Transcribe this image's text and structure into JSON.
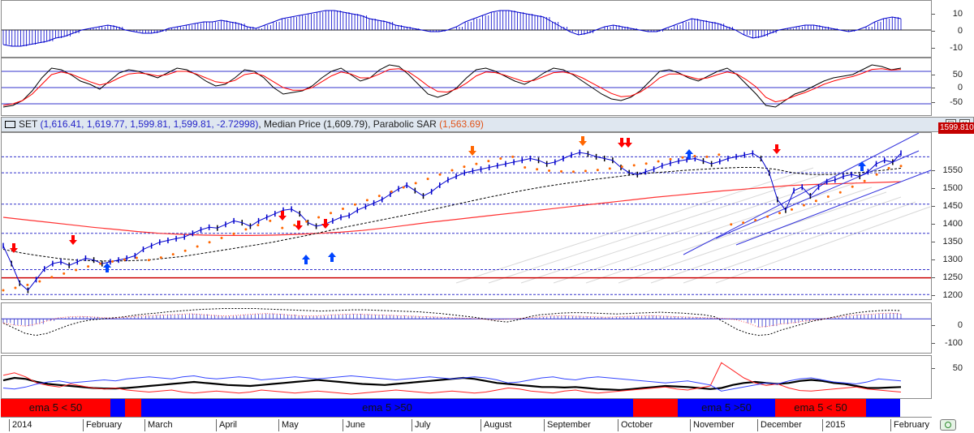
{
  "header": {
    "symbol": "SET",
    "ohlc_text": "(1,616.41, 1,619.77, 1,599.81, 1,599.81, -2.72998)",
    "median_label": "Median Price",
    "median_value": "(1,609.79)",
    "sar_label": "Parabolic SAR",
    "sar_value": "(1,563.69)",
    "maximize_glyph": "□",
    "close_glyph": "×"
  },
  "last_price_tag": "1599.810",
  "months": [
    "2014",
    "February",
    "March",
    "April",
    "May",
    "June",
    "July",
    "August",
    "September",
    "October",
    "November",
    "December",
    "2015",
    "February"
  ],
  "trend_bar": [
    {
      "label": "ema 5 < 50",
      "color": "#ff0000"
    },
    {
      "label": "",
      "color": "#0000ff"
    },
    {
      "label": "",
      "color": "#ff0000"
    },
    {
      "label": "ema 5 >50",
      "color": "#0000ff"
    },
    {
      "label": "",
      "color": "#ff0000"
    },
    {
      "label": "ema 5 >50",
      "color": "#0000ff"
    },
    {
      "label": "ema 5 < 50",
      "color": "#ff0000"
    },
    {
      "label": "",
      "color": "#0000ff"
    }
  ],
  "colors": {
    "price_bars": "#0000cc",
    "price_down": "#000000",
    "sma_long": "#ff3333",
    "ema_dashed": "#000000",
    "sar_dots": "#ff6600",
    "channel": "#3333dd",
    "signal_up": "#0044ff",
    "signal_down": "#ff0000",
    "hline_blue": "#3333cc",
    "hline_red": "#cc0000",
    "panel_bg": "#ffffff",
    "header_bg": "#dfe7f0"
  },
  "chart_data": [
    {
      "type": "bar",
      "name": "momentum histogram",
      "yticks": [
        "10",
        "0",
        "-10"
      ],
      "ylim": [
        -15,
        15
      ],
      "values": [
        -9,
        -10,
        -10,
        -9,
        -8,
        -7,
        -5,
        -4,
        -2,
        0,
        1,
        2,
        3,
        2,
        0,
        -1,
        -2,
        -2,
        -1,
        1,
        2,
        3,
        4,
        5,
        5,
        6,
        5,
        4,
        2,
        1,
        3,
        5,
        7,
        8,
        9,
        10,
        11,
        12,
        12,
        11,
        10,
        9,
        7,
        6,
        5,
        3,
        2,
        1,
        0,
        -1,
        -1,
        0,
        2,
        5,
        7,
        9,
        11,
        12,
        12,
        11,
        10,
        9,
        8,
        5,
        2,
        -1,
        -3,
        -2,
        0,
        2,
        3,
        2,
        1,
        0,
        -1,
        -1,
        1,
        3,
        5,
        7,
        6,
        5,
        4,
        2,
        0,
        -3,
        -5,
        -4,
        -2,
        0,
        1,
        2,
        3,
        3,
        2,
        1,
        0,
        -1,
        0,
        2,
        5,
        7,
        8,
        7
      ]
    },
    {
      "type": "line",
      "name": "oscillator",
      "yticks": [
        "50",
        "0",
        "-50"
      ],
      "ylim": [
        -80,
        80
      ],
      "hlines": [
        50,
        0,
        -50
      ],
      "series": [
        {
          "color": "#000000",
          "values": [
            -60,
            -55,
            -40,
            -10,
            30,
            60,
            55,
            40,
            20,
            10,
            -5,
            20,
            45,
            55,
            50,
            40,
            30,
            45,
            60,
            55,
            40,
            20,
            5,
            10,
            30,
            55,
            50,
            30,
            0,
            -20,
            -15,
            -10,
            5,
            30,
            50,
            60,
            40,
            20,
            30,
            55,
            70,
            65,
            40,
            10,
            -20,
            -30,
            -20,
            0,
            30,
            55,
            60,
            50,
            35,
            20,
            10,
            25,
            45,
            60,
            55,
            40,
            20,
            0,
            -20,
            -35,
            -40,
            -30,
            -10,
            20,
            50,
            55,
            45,
            30,
            20,
            35,
            50,
            60,
            40,
            10,
            -20,
            -55,
            -60,
            -40,
            -20,
            -10,
            5,
            20,
            30,
            35,
            40,
            55,
            70,
            65,
            55,
            60
          ]
        },
        {
          "color": "#ff0000",
          "values": [
            -55,
            -50,
            -40,
            -20,
            10,
            40,
            48,
            42,
            30,
            18,
            8,
            15,
            30,
            42,
            45,
            42,
            36,
            40,
            50,
            50,
            42,
            30,
            18,
            14,
            22,
            40,
            45,
            36,
            18,
            0,
            -8,
            -8,
            0,
            18,
            36,
            48,
            42,
            30,
            30,
            42,
            56,
            58,
            48,
            28,
            5,
            -12,
            -14,
            -4,
            14,
            36,
            48,
            46,
            38,
            28,
            18,
            22,
            34,
            46,
            48,
            42,
            30,
            14,
            -2,
            -18,
            -28,
            -26,
            -14,
            6,
            30,
            42,
            42,
            34,
            26,
            30,
            40,
            48,
            42,
            24,
            2,
            -30,
            -44,
            -38,
            -26,
            -16,
            -4,
            10,
            20,
            28,
            34,
            44,
            56,
            58,
            54,
            56
          ]
        }
      ]
    },
    {
      "type": "line",
      "name": "SET price",
      "yticks": [
        "1550",
        "1500",
        "1450",
        "1400",
        "1350",
        "1300",
        "1250",
        "1200"
      ],
      "ylim": [
        1190,
        1650
      ],
      "hlines_blue": [
        1590,
        1545,
        1457,
        1375,
        1273,
        1203
      ],
      "hline_red": 1250,
      "close": [
        1340,
        1290,
        1235,
        1215,
        1245,
        1275,
        1290,
        1295,
        1285,
        1295,
        1305,
        1300,
        1290,
        1295,
        1300,
        1305,
        1312,
        1330,
        1340,
        1350,
        1355,
        1360,
        1365,
        1375,
        1385,
        1392,
        1390,
        1400,
        1410,
        1405,
        1395,
        1410,
        1420,
        1430,
        1440,
        1443,
        1430,
        1405,
        1395,
        1400,
        1410,
        1420,
        1425,
        1440,
        1450,
        1460,
        1470,
        1485,
        1500,
        1510,
        1495,
        1480,
        1492,
        1510,
        1525,
        1535,
        1545,
        1550,
        1555,
        1560,
        1565,
        1570,
        1575,
        1580,
        1585,
        1580,
        1570,
        1575,
        1585,
        1595,
        1602,
        1598,
        1590,
        1585,
        1580,
        1560,
        1545,
        1540,
        1548,
        1555,
        1565,
        1572,
        1578,
        1582,
        1585,
        1578,
        1570,
        1577,
        1585,
        1590,
        1595,
        1600,
        1585,
        1545,
        1470,
        1440,
        1495,
        1505,
        1480,
        1505,
        1520,
        1525,
        1535,
        1540,
        1535,
        1548,
        1570,
        1580,
        1575,
        1600
      ],
      "sma_long": [
        1420,
        1413,
        1406,
        1399,
        1392,
        1386,
        1380,
        1375,
        1372,
        1370,
        1369,
        1369,
        1370,
        1372,
        1375,
        1378,
        1383,
        1390,
        1398,
        1406,
        1413,
        1420,
        1427,
        1434,
        1441,
        1448,
        1455,
        1462,
        1469,
        1476,
        1482,
        1488,
        1494,
        1499,
        1504,
        1509,
        1512,
        1514,
        1516,
        1518,
        1520
      ],
      "ema_dashed": [
        1330,
        1320,
        1312,
        1305,
        1300,
        1298,
        1297,
        1298,
        1300,
        1305,
        1310,
        1318,
        1326,
        1334,
        1342,
        1350,
        1360,
        1370,
        1381,
        1392,
        1402,
        1412,
        1422,
        1432,
        1443,
        1454,
        1465,
        1476,
        1486,
        1496,
        1505,
        1513,
        1520,
        1527,
        1533,
        1539,
        1544,
        1548,
        1552,
        1555,
        1558,
        1560,
        1560,
        1555,
        1545,
        1540,
        1540,
        1543,
        1547,
        1552,
        1558
      ],
      "sar": [
        1215,
        1222,
        1230,
        1240,
        1252,
        1262,
        1272,
        1282,
        1290,
        1296,
        1301,
        1306,
        1300,
        1307,
        1316,
        1326,
        1338,
        1350,
        1362,
        1374,
        1386,
        1398,
        1410,
        1390,
        1398,
        1408,
        1420,
        1432,
        1444,
        1456,
        1468,
        1480,
        1492,
        1504,
        1516,
        1528,
        1540,
        1552,
        1562,
        1570,
        1578,
        1585,
        1590,
        1560,
        1555,
        1551,
        1549,
        1548,
        1550,
        1553,
        1557,
        1562,
        1566,
        1571,
        1577,
        1583,
        1588,
        1592,
        1590,
        1596,
        1400,
        1405,
        1412,
        1422,
        1432,
        1442,
        1454,
        1466,
        1478,
        1490,
        1506,
        1522,
        1540,
        1558,
        1564
      ]
    },
    {
      "type": "bar",
      "name": "MACD histogram",
      "yticks": [
        "0",
        "-100"
      ],
      "ylim": [
        -160,
        60
      ],
      "hist": [
        -20,
        -30,
        -35,
        -25,
        -10,
        5,
        10,
        12,
        10,
        6,
        4,
        8,
        12,
        15,
        18,
        20,
        22,
        25,
        22,
        18,
        14,
        16,
        20,
        24,
        26,
        24,
        20,
        16,
        14,
        16,
        20,
        22,
        24,
        22,
        20,
        18,
        16,
        14,
        12,
        10,
        8,
        6,
        4,
        2,
        -2,
        -4,
        -2,
        2,
        6,
        10,
        14,
        16,
        14,
        12,
        10,
        8,
        10,
        12,
        14,
        16,
        14,
        12,
        10,
        8,
        6,
        4,
        2,
        -5,
        -20,
        -40,
        -35,
        -25,
        -20,
        -12,
        -6,
        0,
        8,
        15,
        20,
        22,
        26,
        28,
        24
      ],
      "macd": [
        -20,
        -45,
        -70,
        -80,
        -70,
        -50,
        -30,
        -15,
        -5,
        0,
        5,
        10,
        18,
        24,
        28,
        34,
        38,
        42,
        46,
        48,
        50,
        50,
        50,
        50,
        48,
        46,
        44,
        42,
        40,
        38,
        40,
        42,
        44,
        44,
        42,
        40,
        38,
        36,
        34,
        30,
        26,
        20,
        14,
        8,
        0,
        -10,
        -15,
        -5,
        10,
        20,
        24,
        28,
        30,
        30,
        28,
        26,
        24,
        26,
        28,
        30,
        32,
        30,
        28,
        24,
        20,
        10,
        -20,
        -50,
        -70,
        -80,
        -75,
        -55,
        -40,
        -25,
        -10,
        0,
        10,
        22,
        30,
        36,
        40,
        42,
        40
      ]
    },
    {
      "type": "line",
      "name": "ADX / DMI",
      "yticks": [
        "50"
      ],
      "ylim": [
        0,
        80
      ],
      "series": [
        {
          "color": "#000000",
          "values": [
            35,
            40,
            38,
            32,
            28,
            26,
            24,
            22,
            20,
            19,
            19,
            20,
            22,
            24,
            26,
            28,
            30,
            32,
            30,
            28,
            26,
            25,
            24,
            26,
            28,
            30,
            32,
            34,
            36,
            34,
            32,
            30,
            28,
            27,
            26,
            28,
            30,
            32,
            34,
            36,
            38,
            40,
            38,
            34,
            30,
            28,
            26,
            24,
            22,
            22,
            21,
            22,
            20,
            18,
            17,
            16,
            18,
            20,
            22,
            24,
            23,
            22,
            20,
            18,
            20,
            26,
            30,
            32,
            30,
            28,
            30,
            34,
            36,
            34,
            30,
            28,
            24,
            20,
            20,
            21,
            22
          ]
        },
        {
          "color": "#ff2222",
          "values": [
            45,
            50,
            42,
            30,
            25,
            22,
            28,
            24,
            20,
            18,
            20,
            16,
            14,
            12,
            14,
            16,
            12,
            10,
            12,
            14,
            12,
            10,
            12,
            16,
            14,
            12,
            10,
            12,
            14,
            12,
            10,
            8,
            10,
            12,
            14,
            16,
            14,
            12,
            10,
            12,
            14,
            12,
            10,
            12,
            16,
            20,
            18,
            14,
            12,
            10,
            14,
            16,
            12,
            10,
            12,
            14,
            16,
            18,
            20,
            22,
            18,
            16,
            20,
            24,
            70,
            55,
            40,
            30,
            25,
            28,
            20,
            15,
            14,
            16,
            18,
            20,
            22,
            18,
            16,
            14,
            12
          ]
        },
        {
          "color": "#3344ff",
          "values": [
            20,
            18,
            22,
            28,
            32,
            34,
            30,
            32,
            34,
            36,
            34,
            38,
            40,
            42,
            40,
            38,
            42,
            44,
            40,
            38,
            40,
            42,
            40,
            36,
            38,
            40,
            42,
            40,
            38,
            40,
            42,
            44,
            42,
            40,
            38,
            36,
            38,
            40,
            42,
            40,
            38,
            40,
            42,
            40,
            36,
            30,
            32,
            36,
            40,
            42,
            38,
            36,
            40,
            42,
            40,
            38,
            36,
            34,
            32,
            30,
            32,
            34,
            30,
            26,
            14,
            18,
            22,
            26,
            30,
            28,
            34,
            38,
            40,
            36,
            32,
            30,
            28,
            32,
            38,
            36,
            34
          ]
        }
      ]
    }
  ]
}
